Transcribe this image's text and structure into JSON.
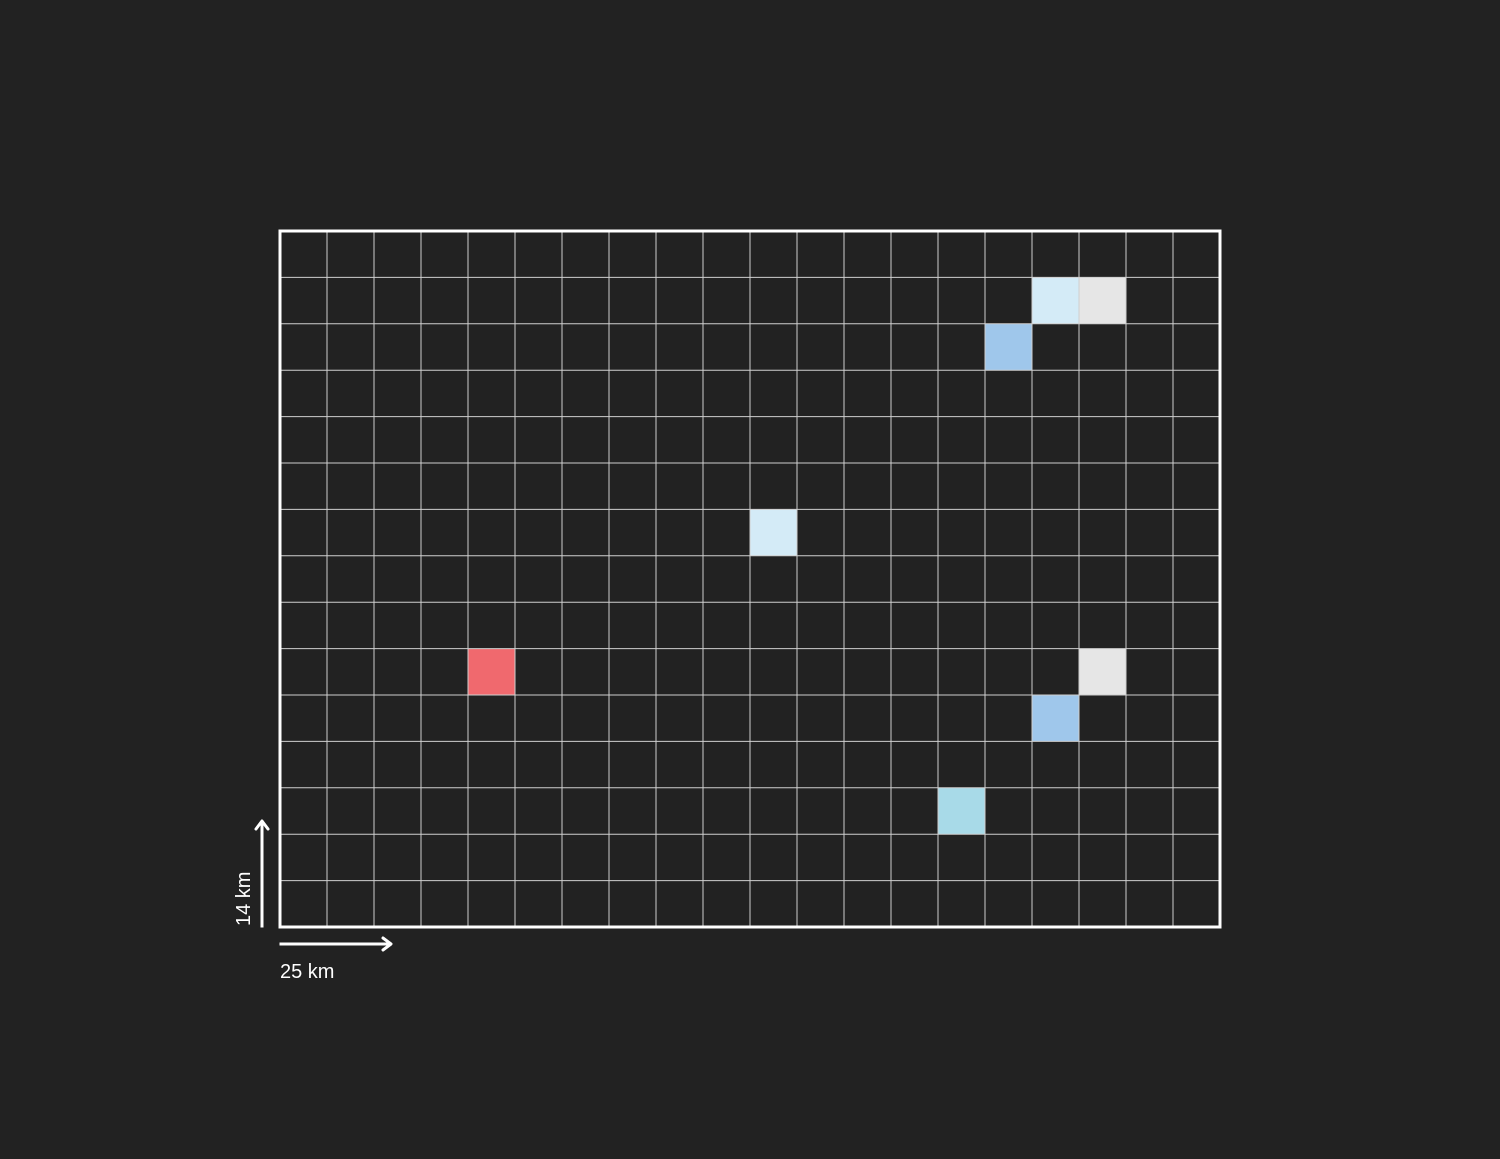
{
  "map": {
    "columns": 20,
    "rows": 15,
    "highlighted_cells": [
      {
        "col": 16,
        "row": 1,
        "color": "#d4ebf7"
      },
      {
        "col": 17,
        "row": 1,
        "color": "#e6e6e6"
      },
      {
        "col": 15,
        "row": 2,
        "color": "#9fc7eb"
      },
      {
        "col": 10,
        "row": 6,
        "color": "#d4ebf7"
      },
      {
        "col": 4,
        "row": 9,
        "color": "#f0696e"
      },
      {
        "col": 17,
        "row": 9,
        "color": "#e6e6e6"
      },
      {
        "col": 16,
        "row": 10,
        "color": "#9fc7eb"
      },
      {
        "col": 14,
        "row": 12,
        "color": "#a8dae8"
      }
    ],
    "colors": {
      "background": "#222222",
      "grid": "#cfcfcf",
      "frame": "#ffffff"
    }
  },
  "scale": {
    "horizontal_label": "25 km",
    "vertical_label": "14 km"
  }
}
